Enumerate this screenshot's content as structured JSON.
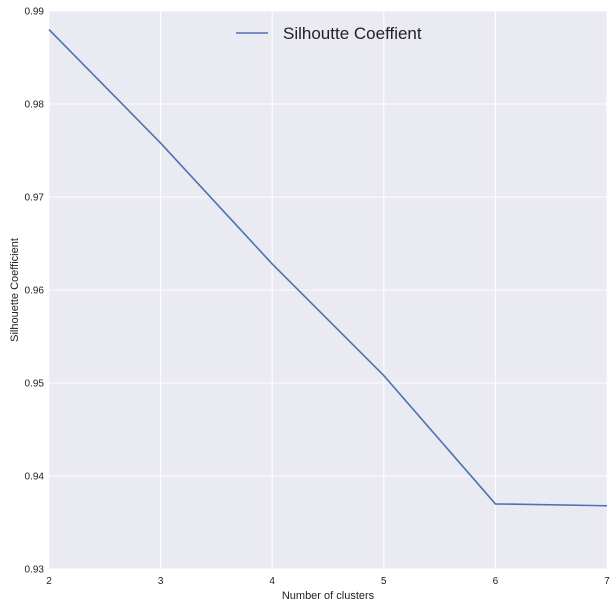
{
  "chart_data": {
    "type": "line",
    "x": [
      2,
      3,
      4,
      5,
      6,
      7
    ],
    "series": [
      {
        "name": "Silhoutte Coeffient",
        "values": [
          0.988,
          0.9758,
          0.9628,
          0.9508,
          0.937,
          0.9368
        ]
      }
    ],
    "xlabel": "Number of clusters",
    "ylabel": "Silhouette Coefficient",
    "xlim": [
      2,
      7
    ],
    "ylim": [
      0.93,
      0.99
    ],
    "xticks": [
      "2",
      "3",
      "4",
      "5",
      "6",
      "7"
    ],
    "yticks": [
      "0.93",
      "0.94",
      "0.95",
      "0.96",
      "0.97",
      "0.98",
      "0.99"
    ],
    "grid": true,
    "legend_position": "top-center",
    "colors": {
      "background": "#eaeaf2",
      "grid": "#ffffff",
      "line": "#4c72b0"
    }
  }
}
